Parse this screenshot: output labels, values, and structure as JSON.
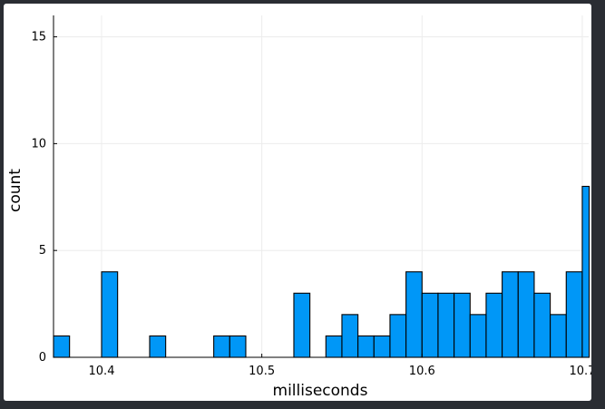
{
  "chart_data": {
    "type": "bar",
    "title": "",
    "xlabel": "milliseconds",
    "ylabel": "count",
    "bin_width": 0.01,
    "bins": [
      {
        "x0": 10.37,
        "x1": 10.38,
        "count": 1
      },
      {
        "x0": 10.38,
        "x1": 10.39,
        "count": 0
      },
      {
        "x0": 10.39,
        "x1": 10.4,
        "count": 0
      },
      {
        "x0": 10.4,
        "x1": 10.41,
        "count": 4
      },
      {
        "x0": 10.41,
        "x1": 10.42,
        "count": 0
      },
      {
        "x0": 10.42,
        "x1": 10.43,
        "count": 0
      },
      {
        "x0": 10.43,
        "x1": 10.44,
        "count": 1
      },
      {
        "x0": 10.44,
        "x1": 10.45,
        "count": 0
      },
      {
        "x0": 10.45,
        "x1": 10.46,
        "count": 0
      },
      {
        "x0": 10.46,
        "x1": 10.47,
        "count": 0
      },
      {
        "x0": 10.47,
        "x1": 10.48,
        "count": 1
      },
      {
        "x0": 10.48,
        "x1": 10.49,
        "count": 1
      },
      {
        "x0": 10.49,
        "x1": 10.5,
        "count": 0
      },
      {
        "x0": 10.5,
        "x1": 10.51,
        "count": 0
      },
      {
        "x0": 10.51,
        "x1": 10.52,
        "count": 0
      },
      {
        "x0": 10.52,
        "x1": 10.53,
        "count": 3
      },
      {
        "x0": 10.53,
        "x1": 10.54,
        "count": 0
      },
      {
        "x0": 10.54,
        "x1": 10.55,
        "count": 1
      },
      {
        "x0": 10.55,
        "x1": 10.56,
        "count": 2
      },
      {
        "x0": 10.56,
        "x1": 10.57,
        "count": 1
      },
      {
        "x0": 10.57,
        "x1": 10.58,
        "count": 1
      },
      {
        "x0": 10.58,
        "x1": 10.59,
        "count": 2
      },
      {
        "x0": 10.59,
        "x1": 10.6,
        "count": 4
      },
      {
        "x0": 10.6,
        "x1": 10.61,
        "count": 3
      },
      {
        "x0": 10.61,
        "x1": 10.62,
        "count": 3
      },
      {
        "x0": 10.62,
        "x1": 10.63,
        "count": 3
      },
      {
        "x0": 10.63,
        "x1": 10.64,
        "count": 2
      },
      {
        "x0": 10.64,
        "x1": 10.65,
        "count": 3
      },
      {
        "x0": 10.65,
        "x1": 10.66,
        "count": 4
      },
      {
        "x0": 10.66,
        "x1": 10.67,
        "count": 4
      },
      {
        "x0": 10.67,
        "x1": 10.68,
        "count": 3
      },
      {
        "x0": 10.68,
        "x1": 10.69,
        "count": 2
      },
      {
        "x0": 10.69,
        "x1": 10.7,
        "count": 4
      },
      {
        "x0": 10.7,
        "x1": 10.71,
        "count": 8
      }
    ],
    "xlim": [
      10.37,
      10.704
    ],
    "ylim": [
      0,
      16
    ],
    "x_ticks": [
      10.4,
      10.5,
      10.6,
      10.7
    ],
    "x_tick_labels": [
      "10.4",
      "10.5",
      "10.6",
      "10.7"
    ],
    "y_ticks": [
      0,
      5,
      10,
      15
    ],
    "y_tick_labels": [
      "0",
      "5",
      "10",
      "15"
    ],
    "grid": true,
    "legend": "none",
    "colors": {
      "bar_fill": "#0097f7",
      "bar_stroke": "#000000",
      "grid": "#ececec",
      "axis": "#000000",
      "background": "#ffffff"
    }
  }
}
